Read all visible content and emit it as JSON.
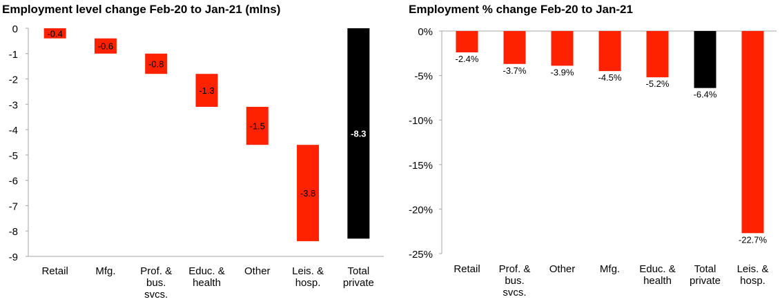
{
  "chart_data": [
    {
      "type": "bar",
      "subtype": "waterfall",
      "title": "Employment level change Feb-20 to Jan-21 (mlns)",
      "categories": [
        "Retail",
        "Mfg.",
        "Prof. & bus. svcs.",
        "Educ. & health",
        "Other",
        "Leis. & hosp.",
        "Total private"
      ],
      "category_lines": [
        [
          "Retail"
        ],
        [
          "Mfg."
        ],
        [
          "Prof. &",
          "bus.",
          "svcs."
        ],
        [
          "Educ. &",
          "health"
        ],
        [
          "Other"
        ],
        [
          "Leis. &",
          "hosp."
        ],
        [
          "Total",
          "private"
        ]
      ],
      "values": [
        -0.4,
        -0.6,
        -0.8,
        -1.3,
        -1.5,
        -3.8,
        -8.3
      ],
      "value_labels": [
        "-0.4",
        "-0.6",
        "-0.8",
        "-1.3",
        "-1.5",
        "-3.8",
        "-8.3"
      ],
      "ylim": [
        -9,
        0
      ],
      "yticks": [
        0,
        -1,
        -2,
        -3,
        -4,
        -5,
        -6,
        -7,
        -8,
        -9
      ],
      "ytick_labels": [
        "0",
        "-1",
        "-2",
        "-3",
        "-4",
        "-5",
        "-6",
        "-7",
        "-8",
        "-9"
      ],
      "total_index": 6,
      "colors": {
        "bar": "#ff2200",
        "total": "#000000",
        "label": "#000000",
        "total_label": "#ffffff",
        "axis": "#a6a6a6"
      },
      "legend": "none",
      "grid": false
    },
    {
      "type": "bar",
      "title": "Employment % change Feb-20 to Jan-21",
      "categories": [
        "Retail",
        "Prof. & bus. svcs.",
        "Other",
        "Mfg.",
        "Educ. & health",
        "Total private",
        "Leis. & hosp."
      ],
      "category_lines": [
        [
          "Retail"
        ],
        [
          "Prof. &",
          "bus.",
          "svcs."
        ],
        [
          "Other"
        ],
        [
          "Mfg."
        ],
        [
          "Educ. &",
          "health"
        ],
        [
          "Total",
          "private"
        ],
        [
          "Leis. &",
          "hosp."
        ]
      ],
      "values": [
        -2.4,
        -3.7,
        -3.9,
        -4.5,
        -5.2,
        -6.4,
        -22.7
      ],
      "value_labels": [
        "-2.4%",
        "-3.7%",
        "-3.9%",
        "-4.5%",
        "-5.2%",
        "-6.4%",
        "-22.7%"
      ],
      "ylim": [
        -25,
        0
      ],
      "yticks": [
        0,
        -5,
        -10,
        -15,
        -20,
        -25
      ],
      "ytick_labels": [
        "0%",
        "-5%",
        "-10%",
        "-15%",
        "-20%",
        "-25%"
      ],
      "total_index": 5,
      "colors": {
        "bar": "#ff2200",
        "total": "#000000",
        "label": "#000000",
        "axis": "#a6a6a6"
      },
      "legend": "none",
      "grid": false
    }
  ]
}
